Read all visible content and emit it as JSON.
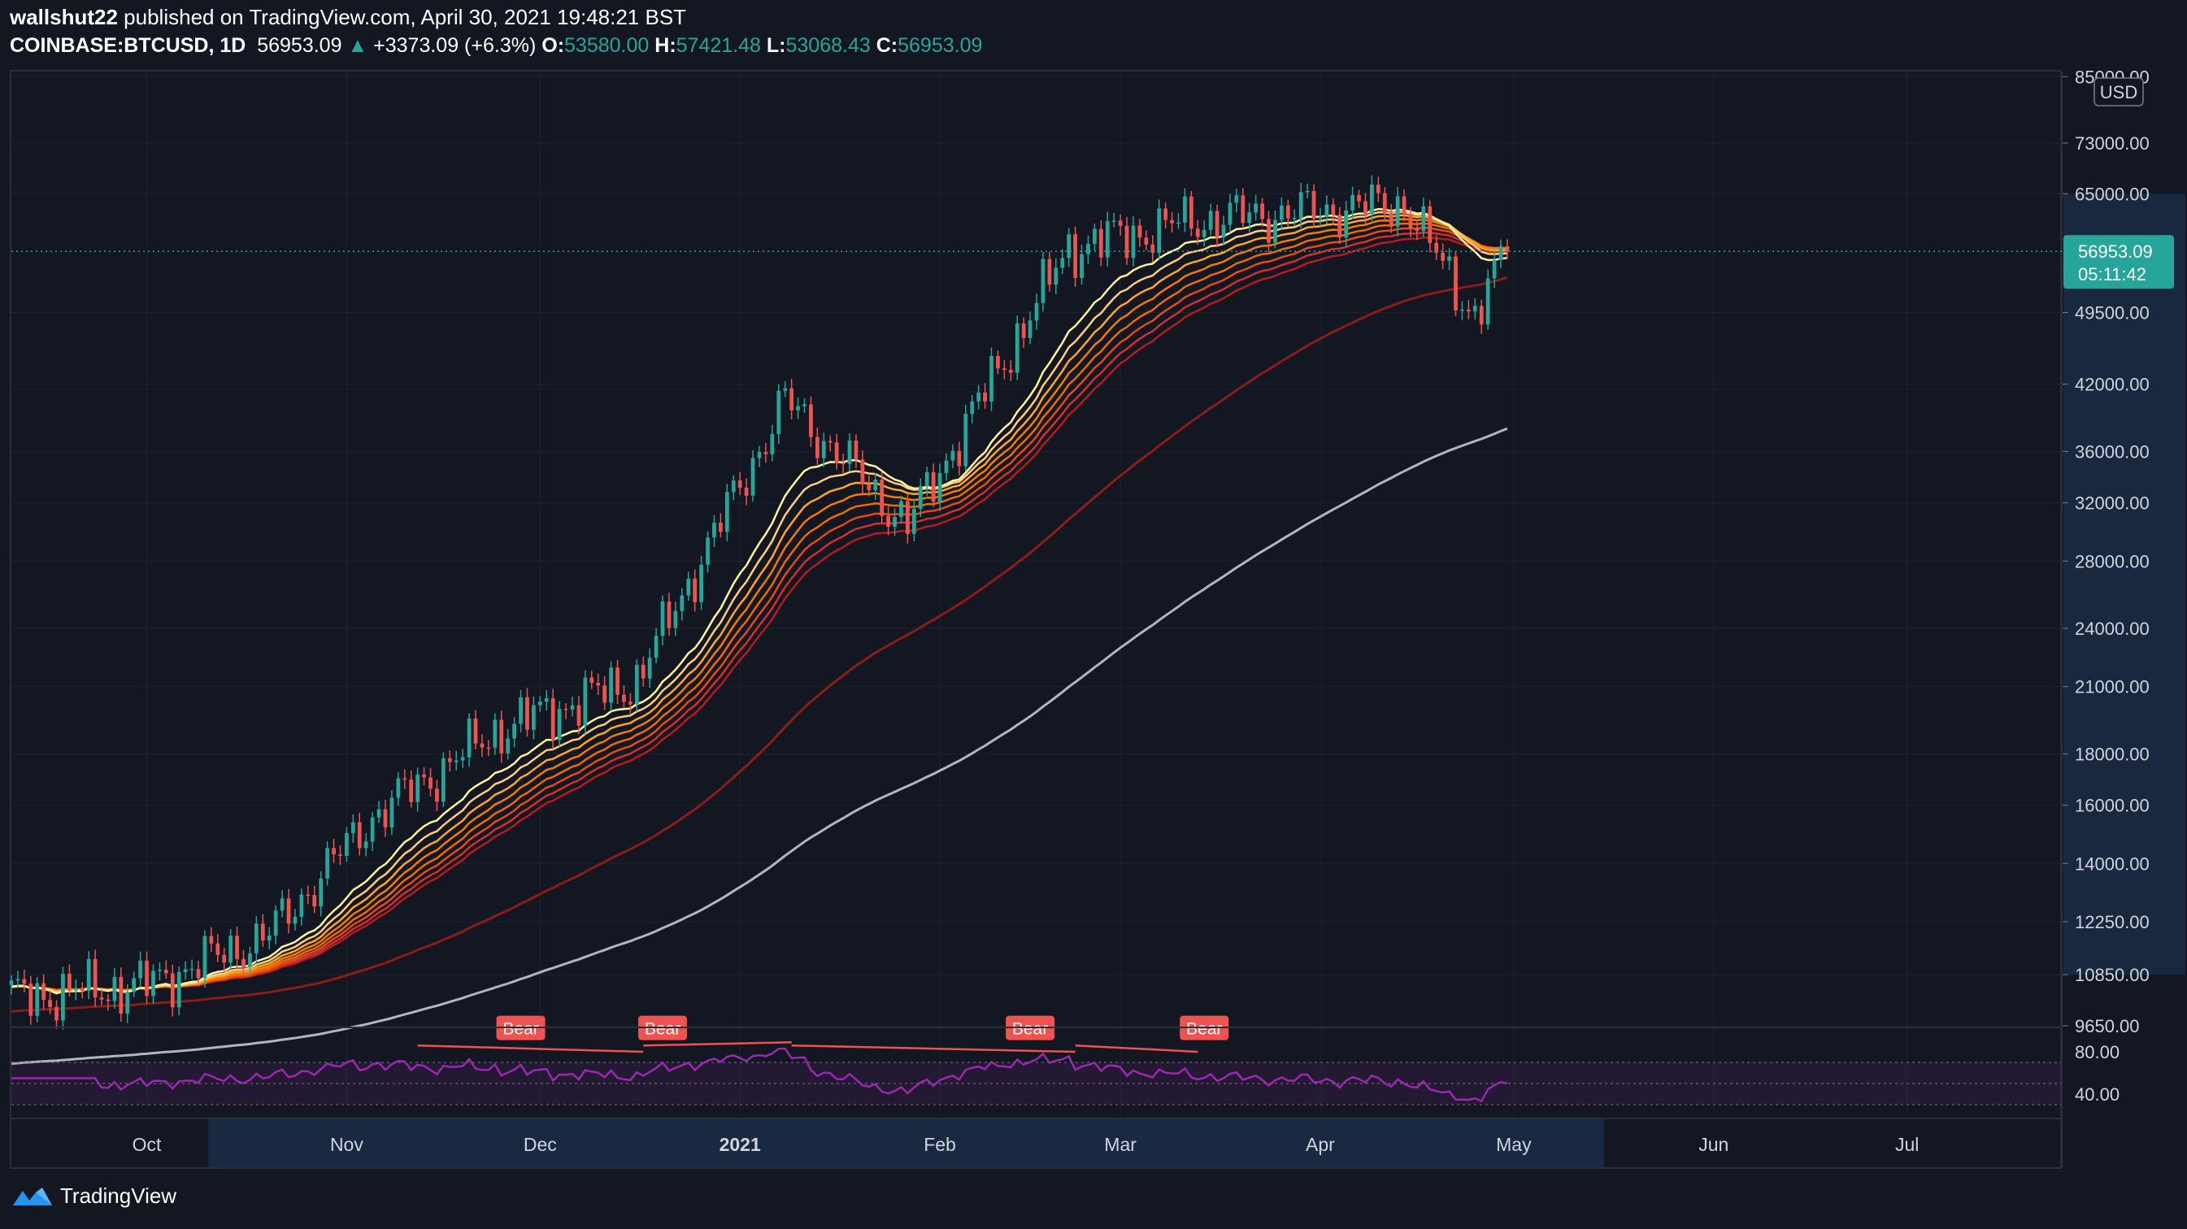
{
  "header": {
    "publisher": "wallshut22",
    "published_text": "published on TradingView.com, April 30, 2021 19:48:21 BST",
    "symbol": "COINBASE:BTCUSD, 1D",
    "last": "56953.09",
    "change": "+3373.09 (+6.3%)",
    "o_label": "O:",
    "o": "53580.00",
    "h_label": "H:",
    "h": "57421.48",
    "l_label": "L:",
    "l": "53068.43",
    "c_label": "C:",
    "c": "56953.09"
  },
  "price_scale": {
    "currency": "USD",
    "labels": [
      "85000.00",
      "73000.00",
      "65000.00",
      "49500.00",
      "42000.00",
      "36000.00",
      "32000.00",
      "28000.00",
      "24000.00",
      "21000.00",
      "18000.00",
      "16000.00",
      "14000.00",
      "12250.00",
      "10850.00",
      "9650.00"
    ],
    "last_price": "56953.09",
    "countdown": "05:11:42"
  },
  "rsi_scale": {
    "labels": [
      "80.00",
      "40.00"
    ]
  },
  "time_axis": {
    "labels": [
      "Oct",
      "Nov",
      "Dec",
      "2021",
      "Feb",
      "Mar",
      "Apr",
      "May",
      "Jun",
      "Jul"
    ]
  },
  "signals": [
    "Bear",
    "Bear",
    "Bear",
    "Bear"
  ],
  "colors": {
    "up": "#26a69a",
    "down": "#ef5350",
    "bg": "#131722",
    "rsi": "#9c27b0",
    "ma200": "#b2b5be",
    "ma100": "#8b1c16"
  },
  "brand": "TradingView",
  "chart_data": {
    "type": "candlestick",
    "title": "COINBASE:BTCUSD, 1D",
    "scale": "log",
    "ylim": [
      9650,
      86000
    ],
    "x_range": [
      "2020-09-10",
      "2021-07-25"
    ],
    "key_closes": [
      {
        "date": "2020-09-10",
        "close": 10300
      },
      {
        "date": "2020-10-01",
        "close": 10600
      },
      {
        "date": "2020-10-20",
        "close": 11900
      },
      {
        "date": "2020-11-05",
        "close": 15600
      },
      {
        "date": "2020-11-25",
        "close": 19100
      },
      {
        "date": "2020-12-16",
        "close": 21300
      },
      {
        "date": "2021-01-08",
        "close": 40500
      },
      {
        "date": "2021-01-27",
        "close": 30400
      },
      {
        "date": "2021-02-21",
        "close": 57500
      },
      {
        "date": "2021-03-13",
        "close": 61200
      },
      {
        "date": "2021-04-14",
        "close": 63500
      },
      {
        "date": "2021-04-25",
        "close": 49100
      },
      {
        "date": "2021-04-30",
        "close": 56953.09
      }
    ],
    "indicators": [
      "EMA ribbon (8 lines)",
      "MA 100",
      "MA 200",
      "RSI 14"
    ],
    "rsi": {
      "ylim": [
        20,
        100
      ],
      "upper": 70,
      "mid": 50,
      "lower": 30
    },
    "annotations": [
      "Bear",
      "Bear",
      "Bear",
      "Bear"
    ]
  }
}
